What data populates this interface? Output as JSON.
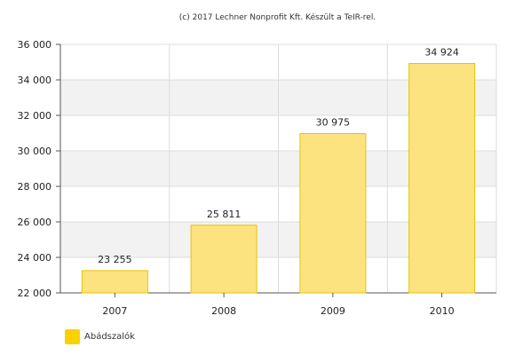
{
  "chart_data": {
    "type": "bar",
    "credit": "(c) 2017 Lechner Nonprofit Kft. Készült a TeIR-rel.",
    "categories": [
      "2007",
      "2008",
      "2009",
      "2010"
    ],
    "series": [
      {
        "name": "Abádszalók",
        "values": [
          23255,
          25811,
          30975,
          34924
        ],
        "labels": [
          "23 255",
          "25 811",
          "30 975",
          "34 924"
        ]
      }
    ],
    "ylim": [
      22000,
      36000
    ],
    "yticks": [
      22000,
      24000,
      26000,
      28000,
      30000,
      32000,
      34000,
      36000
    ],
    "ytick_labels": [
      "22 000",
      "24 000",
      "26 000",
      "28 000",
      "30 000",
      "32 000",
      "34 000",
      "36 000"
    ],
    "grid": true,
    "legend_position": "bottom-left",
    "colors": {
      "bar_fill": "#FCE37F",
      "bar_stroke": "#E8C400",
      "legend_swatch": "#F9D200",
      "plot_band": "#F2F2F2",
      "grid": "#DCDCDC",
      "axis": "#555555"
    }
  }
}
